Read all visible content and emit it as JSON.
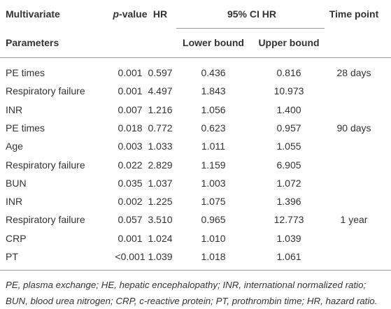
{
  "table": {
    "header": {
      "col1": "Multivariate",
      "col2": "p-value",
      "col3": "HR",
      "group": "95% CI HR",
      "col6": "Time point",
      "col1_sub": "Parameters",
      "col4_sub": "Lower bound",
      "col5_sub": "Upper bound"
    },
    "rows": [
      [
        "PE times",
        "0.001",
        "0.597",
        "0.436",
        "0.816",
        "28 days"
      ],
      [
        "Respiratory failure",
        "0.001",
        "4.497",
        "1.843",
        "10.973",
        null
      ],
      [
        "INR",
        "0.007",
        "1.216",
        "1.056",
        "1.400",
        null
      ],
      [
        "PE times",
        "0.018",
        "0.772",
        "0.623",
        "0.957",
        "90 days"
      ],
      [
        "Age",
        "0.003",
        "1.033",
        "1.011",
        "1.055",
        null
      ],
      [
        "Respiratory failure",
        "0.022",
        "2.829",
        "1.159",
        "6.905",
        null
      ],
      [
        "BUN",
        "0.035",
        "1.037",
        "1.003",
        "1.072",
        null
      ],
      [
        "INR",
        "0.002",
        "1.225",
        "1.075",
        "1.396",
        null
      ],
      [
        "Respiratory failure",
        "0.057",
        "3.510",
        "0.965",
        "12.773",
        "1 year"
      ],
      [
        "CRP",
        "0.001",
        "1.024",
        "1.010",
        "1.039",
        null
      ],
      [
        "PT",
        "<0.001",
        "1.039",
        "1.018",
        "1.061",
        null
      ]
    ],
    "footnote": "PE, plasma exchange; HE, hepatic encephalopathy; INR, international normalized ratio; BUN, blood urea nitrogen; CRP, c-reactive protein; PT, prothrombin time; HR, hazard ratio."
  }
}
